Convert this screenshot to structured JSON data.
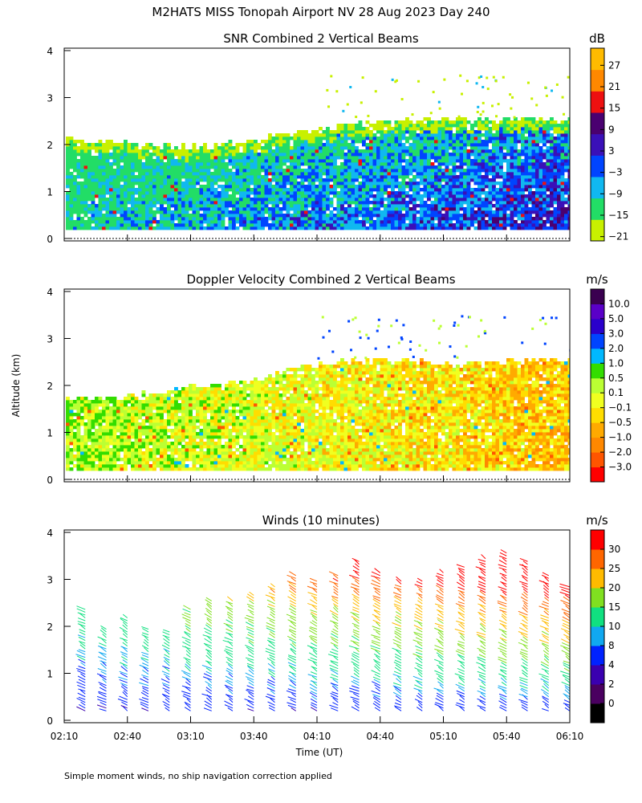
{
  "figure": {
    "title": "M2HATS MISS Tonopah Airport NV  28 Aug 2023 Day 240",
    "ylabel": "Altitude (km)",
    "xlabel": "Time (UT)",
    "footnote": "Simple moment winds, no ship navigation correction applied"
  },
  "chart_data": [
    {
      "type": "heatmap",
      "title": "SNR Combined 2 Vertical Beams",
      "units": "dB",
      "xlim": [
        "02:10",
        "06:10"
      ],
      "ylim": [
        0,
        4
      ],
      "y_ticks": [
        0,
        1,
        2,
        3,
        4
      ],
      "colorbar_ticks": [
        "27",
        "21",
        "15",
        "9",
        "3",
        "−3",
        "−9",
        "−15",
        "−21"
      ],
      "colorbar_colors": [
        "#c8f000",
        "#22dd66",
        "#10b8f0",
        "#0044ff",
        "#3a10b8",
        "#4a0070",
        "#ee1010",
        "#ff8800",
        "#ffbb00"
      ],
      "data_top_km": [
        2.1,
        2.0,
        1.9,
        2.0,
        2.2,
        2.4,
        2.5,
        2.5,
        2.5,
        2.5
      ]
    },
    {
      "type": "heatmap",
      "title": "Doppler Velocity Combined 2 Vertical Beams",
      "units": "m/s",
      "xlim": [
        "02:10",
        "06:10"
      ],
      "ylim": [
        0,
        4
      ],
      "y_ticks": [
        0,
        1,
        2,
        3,
        4
      ],
      "colorbar_ticks": [
        "10.0",
        "5.0",
        "3.0",
        "2.0",
        "1.0",
        "0.5",
        "0.1",
        "−0.1",
        "−0.5",
        "−1.0",
        "−2.0",
        "−3.0"
      ],
      "colorbar_colors": [
        "#ff0000",
        "#ff5500",
        "#ff8800",
        "#ffaa00",
        "#ffdd00",
        "#f0ff20",
        "#bbff33",
        "#33dd00",
        "#00b8ff",
        "#0044ff",
        "#2a00cc",
        "#5a00c8",
        "#3a0050"
      ],
      "data_top_km": [
        1.7,
        1.7,
        1.9,
        2.0,
        2.3,
        2.5,
        2.5,
        2.4,
        2.5,
        2.5
      ]
    },
    {
      "type": "scatter",
      "title": "Winds (10 minutes)",
      "units": "m/s",
      "xlim": [
        "02:10",
        "06:10"
      ],
      "ylim": [
        0,
        4
      ],
      "y_ticks": [
        0,
        1,
        2,
        3,
        4
      ],
      "x_ticks": [
        "02:10",
        "02:40",
        "03:10",
        "03:40",
        "04:10",
        "04:40",
        "05:10",
        "05:40",
        "06:10"
      ],
      "colorbar_ticks": [
        "30",
        "25",
        "20",
        "15",
        "10",
        "8",
        "4",
        "2",
        "0"
      ],
      "colorbar_colors": [
        "#000000",
        "#4a0060",
        "#3a00b0",
        "#0022ff",
        "#10a8f0",
        "#10e080",
        "#80e020",
        "#ffbb00",
        "#ff6600",
        "#ff0000"
      ],
      "profile_times_min": [
        10,
        20,
        30,
        40,
        50,
        60,
        70,
        80,
        90,
        100,
        110,
        120,
        130,
        140,
        150,
        160,
        170,
        180,
        190,
        200,
        210,
        220,
        230,
        240
      ],
      "profile_top_km": [
        2.4,
        2.0,
        2.2,
        2.0,
        1.9,
        2.4,
        2.6,
        2.6,
        2.7,
        2.9,
        3.1,
        3.0,
        3.1,
        3.4,
        3.2,
        3.0,
        3.0,
        3.2,
        3.3,
        3.5,
        3.6,
        3.4,
        3.1,
        2.9
      ]
    }
  ]
}
